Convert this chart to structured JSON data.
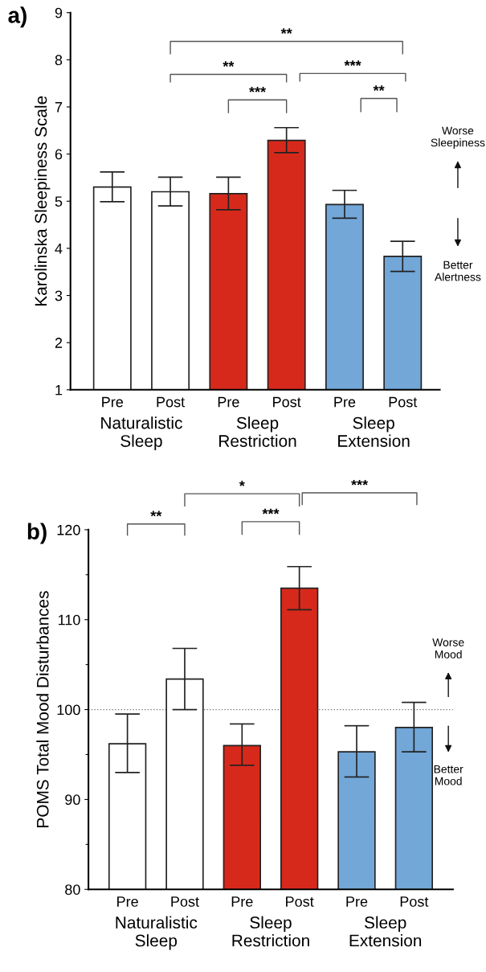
{
  "chart_data": [
    {
      "type": "bar",
      "title": "a)",
      "ylabel": "Karolinska Sleepiness Scale",
      "categories": [
        "Pre",
        "Post",
        "Pre",
        "Post",
        "Pre",
        "Post"
      ],
      "values": [
        5.3,
        5.2,
        5.16,
        6.29,
        4.93,
        3.83
      ],
      "errors": [
        [
          4.99,
          5.62
        ],
        [
          4.9,
          5.51
        ],
        [
          4.82,
          5.51
        ],
        [
          6.03,
          6.56
        ],
        [
          4.64,
          5.23
        ],
        [
          3.51,
          4.15
        ]
      ],
      "colors": [
        "#ffffff",
        "#ffffff",
        "#d7291b",
        "#d7291b",
        "#72a7d8",
        "#72a7d8"
      ],
      "ylim": [
        1,
        9
      ],
      "yticks": [
        1,
        2,
        3,
        4,
        5,
        6,
        7,
        8,
        9
      ],
      "grid": false,
      "legend": false,
      "annotations": [
        "**",
        "**",
        "***",
        "***",
        "**",
        "Worse\nSleepiness",
        "Better\nAlertness",
        "Naturalistic\nSleep",
        "Sleep\nRestriction",
        "Sleep\nExtension"
      ]
    },
    {
      "type": "bar",
      "title": "b)",
      "ylabel": "POMS Total Mood Disturbances",
      "categories": [
        "Pre",
        "Post",
        "Pre",
        "Post",
        "Pre",
        "Post"
      ],
      "values": [
        96.2,
        103.4,
        96.0,
        113.5,
        95.3,
        98.0
      ],
      "errors": [
        [
          93.0,
          99.5
        ],
        [
          100.0,
          106.8
        ],
        [
          93.8,
          98.4
        ],
        [
          111.1,
          115.9
        ],
        [
          92.5,
          98.2
        ],
        [
          95.3,
          100.8
        ]
      ],
      "colors": [
        "#ffffff",
        "#ffffff",
        "#d7291b",
        "#d7291b",
        "#72a7d8",
        "#72a7d8"
      ],
      "ylim": [
        80,
        120
      ],
      "yticks": [
        80,
        {
          "value": 85,
          "label": null
        },
        90,
        {
          "value": 95,
          "label": null
        },
        100,
        {
          "value": 105,
          "label": null
        },
        110,
        {
          "value": 115,
          "label": null
        },
        120
      ],
      "grid": false,
      "legend": false,
      "ref_lines": [
        {
          "axis": "y",
          "value": 100,
          "label": null,
          "color": "#777777",
          "line_style": "dotted"
        }
      ],
      "annotations": [
        "**",
        "***",
        "*",
        "***",
        "Worse\nMood",
        "Better\nMood",
        "Naturalistic\nSleep",
        "Sleep\nRestriction",
        "Sleep\nExtension"
      ]
    }
  ]
}
